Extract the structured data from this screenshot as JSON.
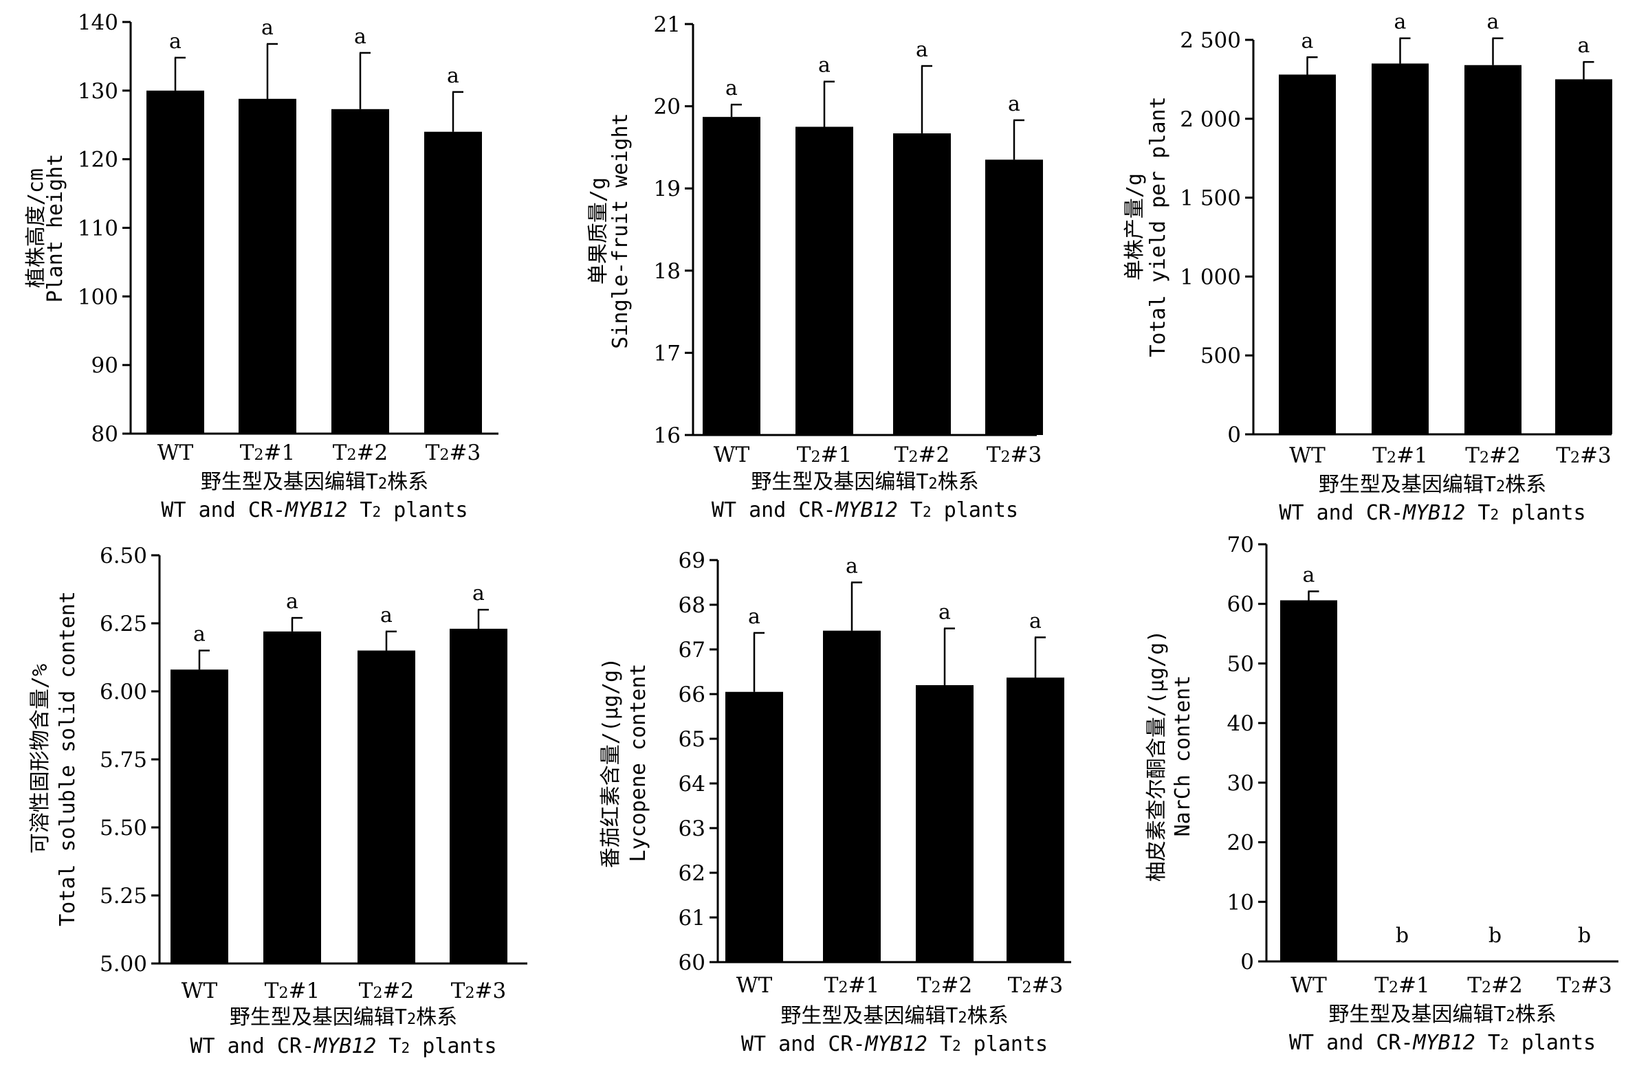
{
  "chart_data": [
    {
      "type": "bar",
      "categories": [
        "WT",
        "T2#1",
        "T2#2",
        "T2#3"
      ],
      "values": [
        130.0,
        128.8,
        127.3,
        124.0
      ],
      "errors": [
        4.8,
        8.0,
        8.2,
        5.8
      ],
      "significance": [
        "a",
        "a",
        "a",
        "a"
      ],
      "ylabel_cn": "植株高度/cm",
      "ylabel_en": "Plant height",
      "xlabel_cn": "野生型及基因编辑T2株系",
      "xlabel_en": "WT and CR-MYB12 T2 plants",
      "ylim": [
        80,
        140
      ],
      "yticks": [
        80,
        90,
        100,
        110,
        120,
        130,
        140
      ],
      "ytick_labels": [
        "80",
        "90",
        "100",
        "110",
        "120",
        "130",
        "140"
      ]
    },
    {
      "type": "bar",
      "categories": [
        "WT",
        "T2#1",
        "T2#2",
        "T2#3"
      ],
      "values": [
        19.87,
        19.75,
        19.67,
        19.35
      ],
      "errors": [
        0.15,
        0.55,
        0.82,
        0.48
      ],
      "significance": [
        "a",
        "a",
        "a",
        "a"
      ],
      "ylabel_cn": "单果质量/g",
      "ylabel_en": "Single-fruit weight",
      "xlabel_cn": "野生型及基因编辑T2株系",
      "xlabel_en": "WT and CR-MYB12 T2 plants",
      "ylim": [
        16,
        21
      ],
      "yticks": [
        16,
        17,
        18,
        19,
        20,
        21
      ],
      "ytick_labels": [
        "16",
        "17",
        "18",
        "19",
        "20",
        "21"
      ]
    },
    {
      "type": "bar",
      "categories": [
        "WT",
        "T2#1",
        "T2#2",
        "T2#3"
      ],
      "values": [
        2280,
        2350,
        2340,
        2250
      ],
      "errors": [
        110,
        160,
        170,
        110
      ],
      "significance": [
        "a",
        "a",
        "a",
        "a"
      ],
      "ylabel_cn": "单株产量/g",
      "ylabel_en": "Total yield per plant",
      "xlabel_cn": "野生型及基因编辑T2株系",
      "xlabel_en": "WT and CR-MYB12 T2 plants",
      "ylim": [
        0,
        2500
      ],
      "yticks": [
        0,
        500,
        1000,
        1500,
        2000,
        2500
      ],
      "ytick_labels": [
        "0",
        "500",
        "1 000",
        "1 500",
        "2 000",
        "2 500"
      ]
    },
    {
      "type": "bar",
      "categories": [
        "WT",
        "T2#1",
        "T2#2",
        "T2#3"
      ],
      "values": [
        6.08,
        6.22,
        6.15,
        6.23
      ],
      "errors": [
        0.07,
        0.05,
        0.07,
        0.07
      ],
      "significance": [
        "a",
        "a",
        "a",
        "a"
      ],
      "ylabel_cn": "可溶性固形物含量/%",
      "ylabel_en": "Total soluble solid content",
      "xlabel_cn": "野生型及基因编辑T2株系",
      "xlabel_en": "WT and CR-MYB12 T2 plants",
      "ylim": [
        5.0,
        6.5
      ],
      "yticks": [
        5.0,
        5.25,
        5.5,
        5.75,
        6.0,
        6.25,
        6.5
      ],
      "ytick_labels": [
        "5.00",
        "5.25",
        "5.50",
        "5.75",
        "6.00",
        "6.25",
        "6.50"
      ]
    },
    {
      "type": "bar",
      "categories": [
        "WT",
        "T2#1",
        "T2#2",
        "T2#3"
      ],
      "values": [
        66.05,
        67.42,
        66.2,
        66.37
      ],
      "errors": [
        1.32,
        1.08,
        1.27,
        0.9
      ],
      "significance": [
        "a",
        "a",
        "a",
        "a"
      ],
      "ylabel_cn": "番茄红素含量/(μg/g)",
      "ylabel_en": "Lycopene content",
      "xlabel_cn": "野生型及基因编辑T2株系",
      "xlabel_en": "WT and CR-MYB12 T2 plants",
      "ylim": [
        60,
        69
      ],
      "yticks": [
        60,
        61,
        62,
        63,
        64,
        65,
        66,
        67,
        68,
        69
      ],
      "ytick_labels": [
        "60",
        "61",
        "62",
        "63",
        "64",
        "65",
        "66",
        "67",
        "68",
        "69"
      ]
    },
    {
      "type": "bar",
      "categories": [
        "WT",
        "T2#1",
        "T2#2",
        "T2#3"
      ],
      "values": [
        60.6,
        0,
        0,
        0
      ],
      "errors": [
        1.5,
        0,
        0,
        0
      ],
      "significance": [
        "a",
        "b",
        "b",
        "b"
      ],
      "ylabel_cn": "柚皮素查尔酮含量/(μg/g)",
      "ylabel_en": "NarCh content",
      "xlabel_cn": "野生型及基因编辑T2株系",
      "xlabel_en": "WT and CR-MYB12 T2 plants",
      "ylim": [
        0,
        70
      ],
      "yticks": [
        0,
        10,
        20,
        30,
        40,
        50,
        60,
        70
      ],
      "ytick_labels": [
        "0",
        "10",
        "20",
        "30",
        "40",
        "50",
        "60",
        "70"
      ]
    }
  ]
}
